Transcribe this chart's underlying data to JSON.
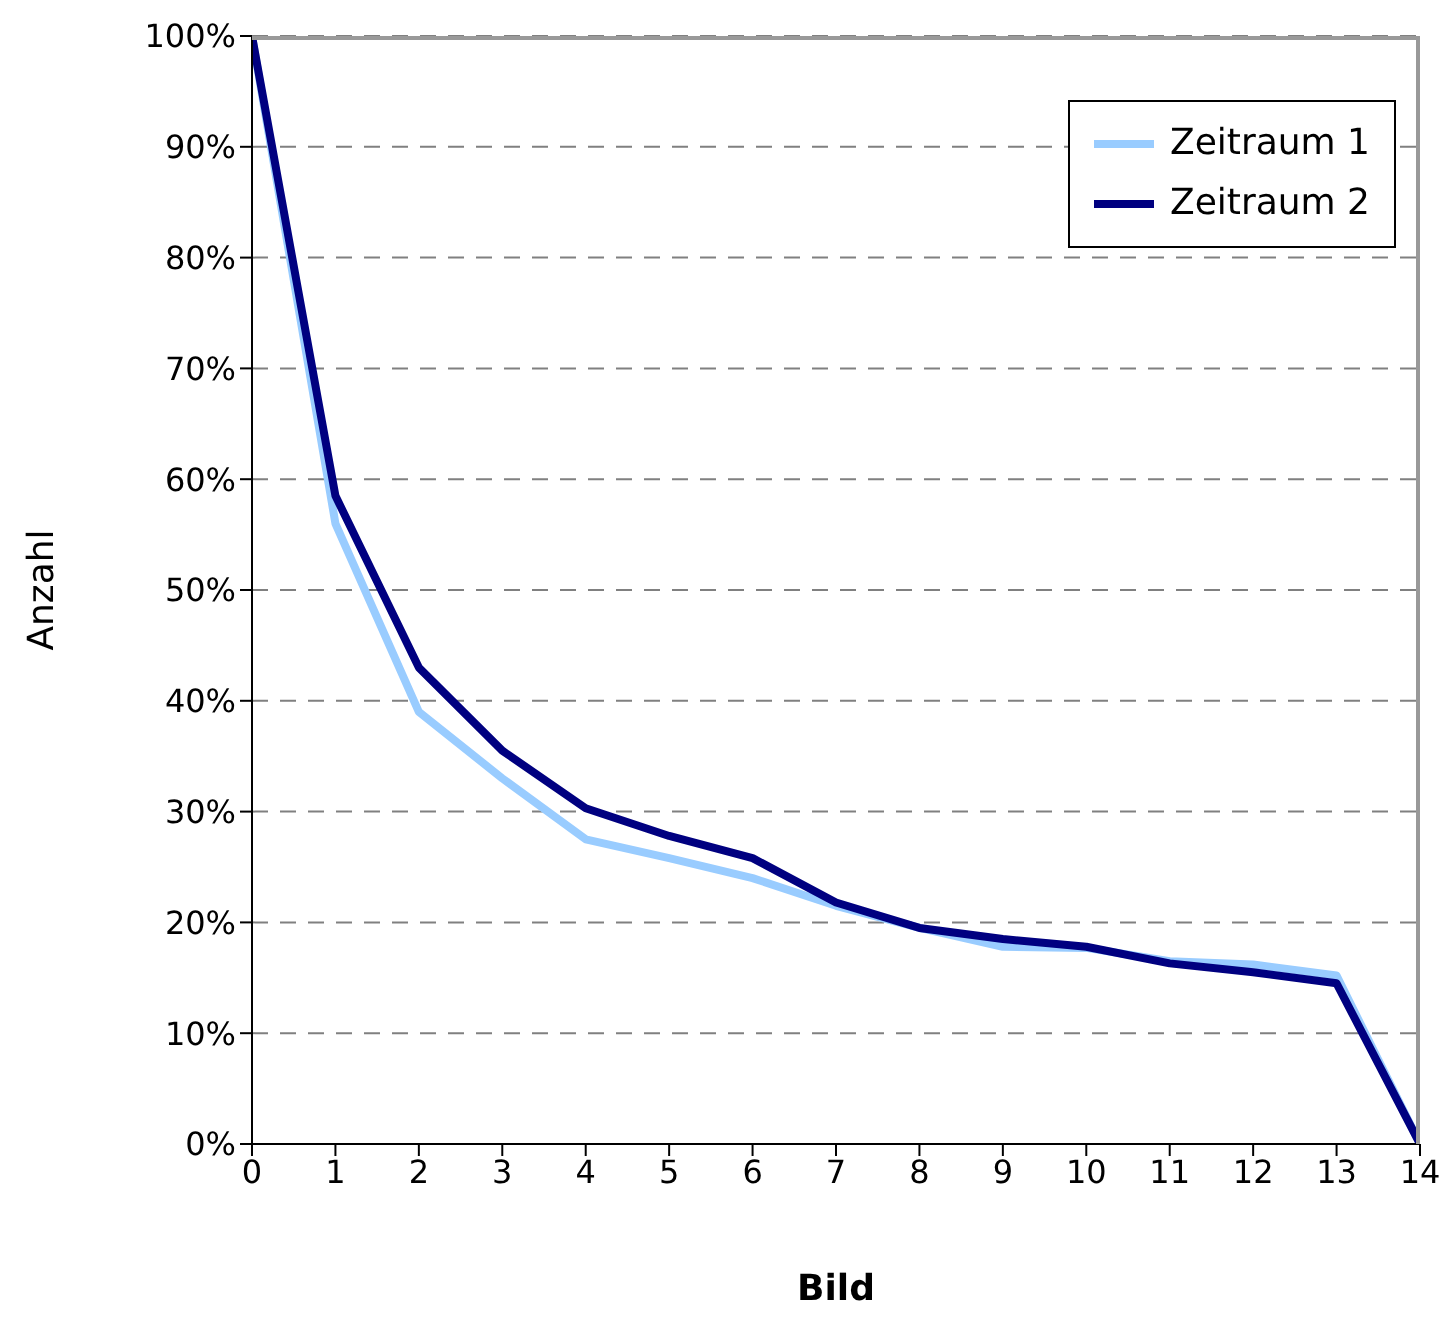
{
  "chart_data": {
    "type": "line",
    "xlabel": "Bild",
    "ylabel": "Anzahl",
    "x": [
      0,
      1,
      2,
      3,
      4,
      5,
      6,
      7,
      8,
      9,
      10,
      11,
      12,
      13,
      14
    ],
    "series": [
      {
        "name": "Zeitraum 1",
        "color": "#99ccff",
        "values": [
          100,
          56,
          39,
          33,
          27.5,
          25.8,
          24,
          21.5,
          19.5,
          17.8,
          17.7,
          16.5,
          16.2,
          15.2,
          0
        ]
      },
      {
        "name": "Zeitraum 2",
        "color": "#000080",
        "values": [
          100,
          58.5,
          43,
          35.5,
          30.3,
          27.8,
          25.8,
          21.8,
          19.5,
          18.5,
          17.8,
          16.3,
          15.5,
          14.5,
          0
        ]
      }
    ],
    "xlim": [
      0,
      14
    ],
    "xticks": [
      0,
      1,
      2,
      3,
      4,
      5,
      6,
      7,
      8,
      9,
      10,
      11,
      12,
      13,
      14
    ],
    "ylim": [
      0,
      100
    ],
    "yticks": [
      {
        "value": 0,
        "label": "0%"
      },
      {
        "value": 10,
        "label": "10%"
      },
      {
        "value": 20,
        "label": "20%"
      },
      {
        "value": 30,
        "label": "30%"
      },
      {
        "value": 40,
        "label": "40%"
      },
      {
        "value": 50,
        "label": "50%"
      },
      {
        "value": 60,
        "label": "60%"
      },
      {
        "value": 70,
        "label": "70%"
      },
      {
        "value": 80,
        "label": "80%"
      },
      {
        "value": 90,
        "label": "90%"
      },
      {
        "value": 100,
        "label": "100%"
      }
    ],
    "grid": "y",
    "legend": "top right",
    "marker": "none",
    "line_style": "solid"
  }
}
